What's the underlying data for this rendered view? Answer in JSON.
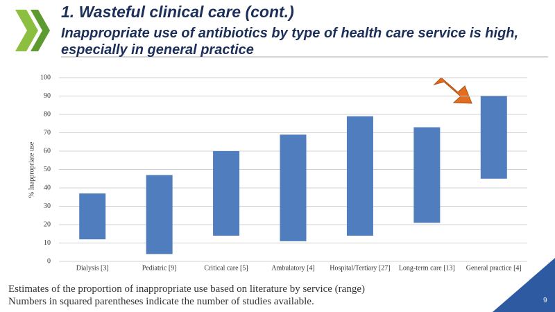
{
  "header": {
    "title": "1. Wasteful clinical care (cont.)",
    "subtitle": "Inappropriate use of antibiotics by type of health care service is high, especially in general practice"
  },
  "chart_data": {
    "type": "range-bar",
    "y_label": "% Inappropriate use",
    "categories": [
      "Dialysis [3]",
      "Pediatric [9]",
      "Critical care [5]",
      "Ambulatory [4]",
      "Hospital/Tertiary [27]",
      "Long-term care [13]",
      "General practice [4]"
    ],
    "lows": [
      12,
      4,
      14,
      11,
      14,
      21,
      45
    ],
    "highs": [
      37,
      47,
      60,
      69,
      79,
      73,
      90
    ],
    "color": "#4f7dbd",
    "ylim": [
      0,
      100
    ],
    "yticks": [
      0,
      10,
      20,
      30,
      40,
      50,
      60,
      70,
      80,
      90,
      100
    ],
    "grid": true
  },
  "notes": [
    "Estimates of the proportion of inappropriate use based on literature by service  (range)",
    "Numbers in squared parentheses indicate the number of studies available."
  ],
  "page_number": "9"
}
